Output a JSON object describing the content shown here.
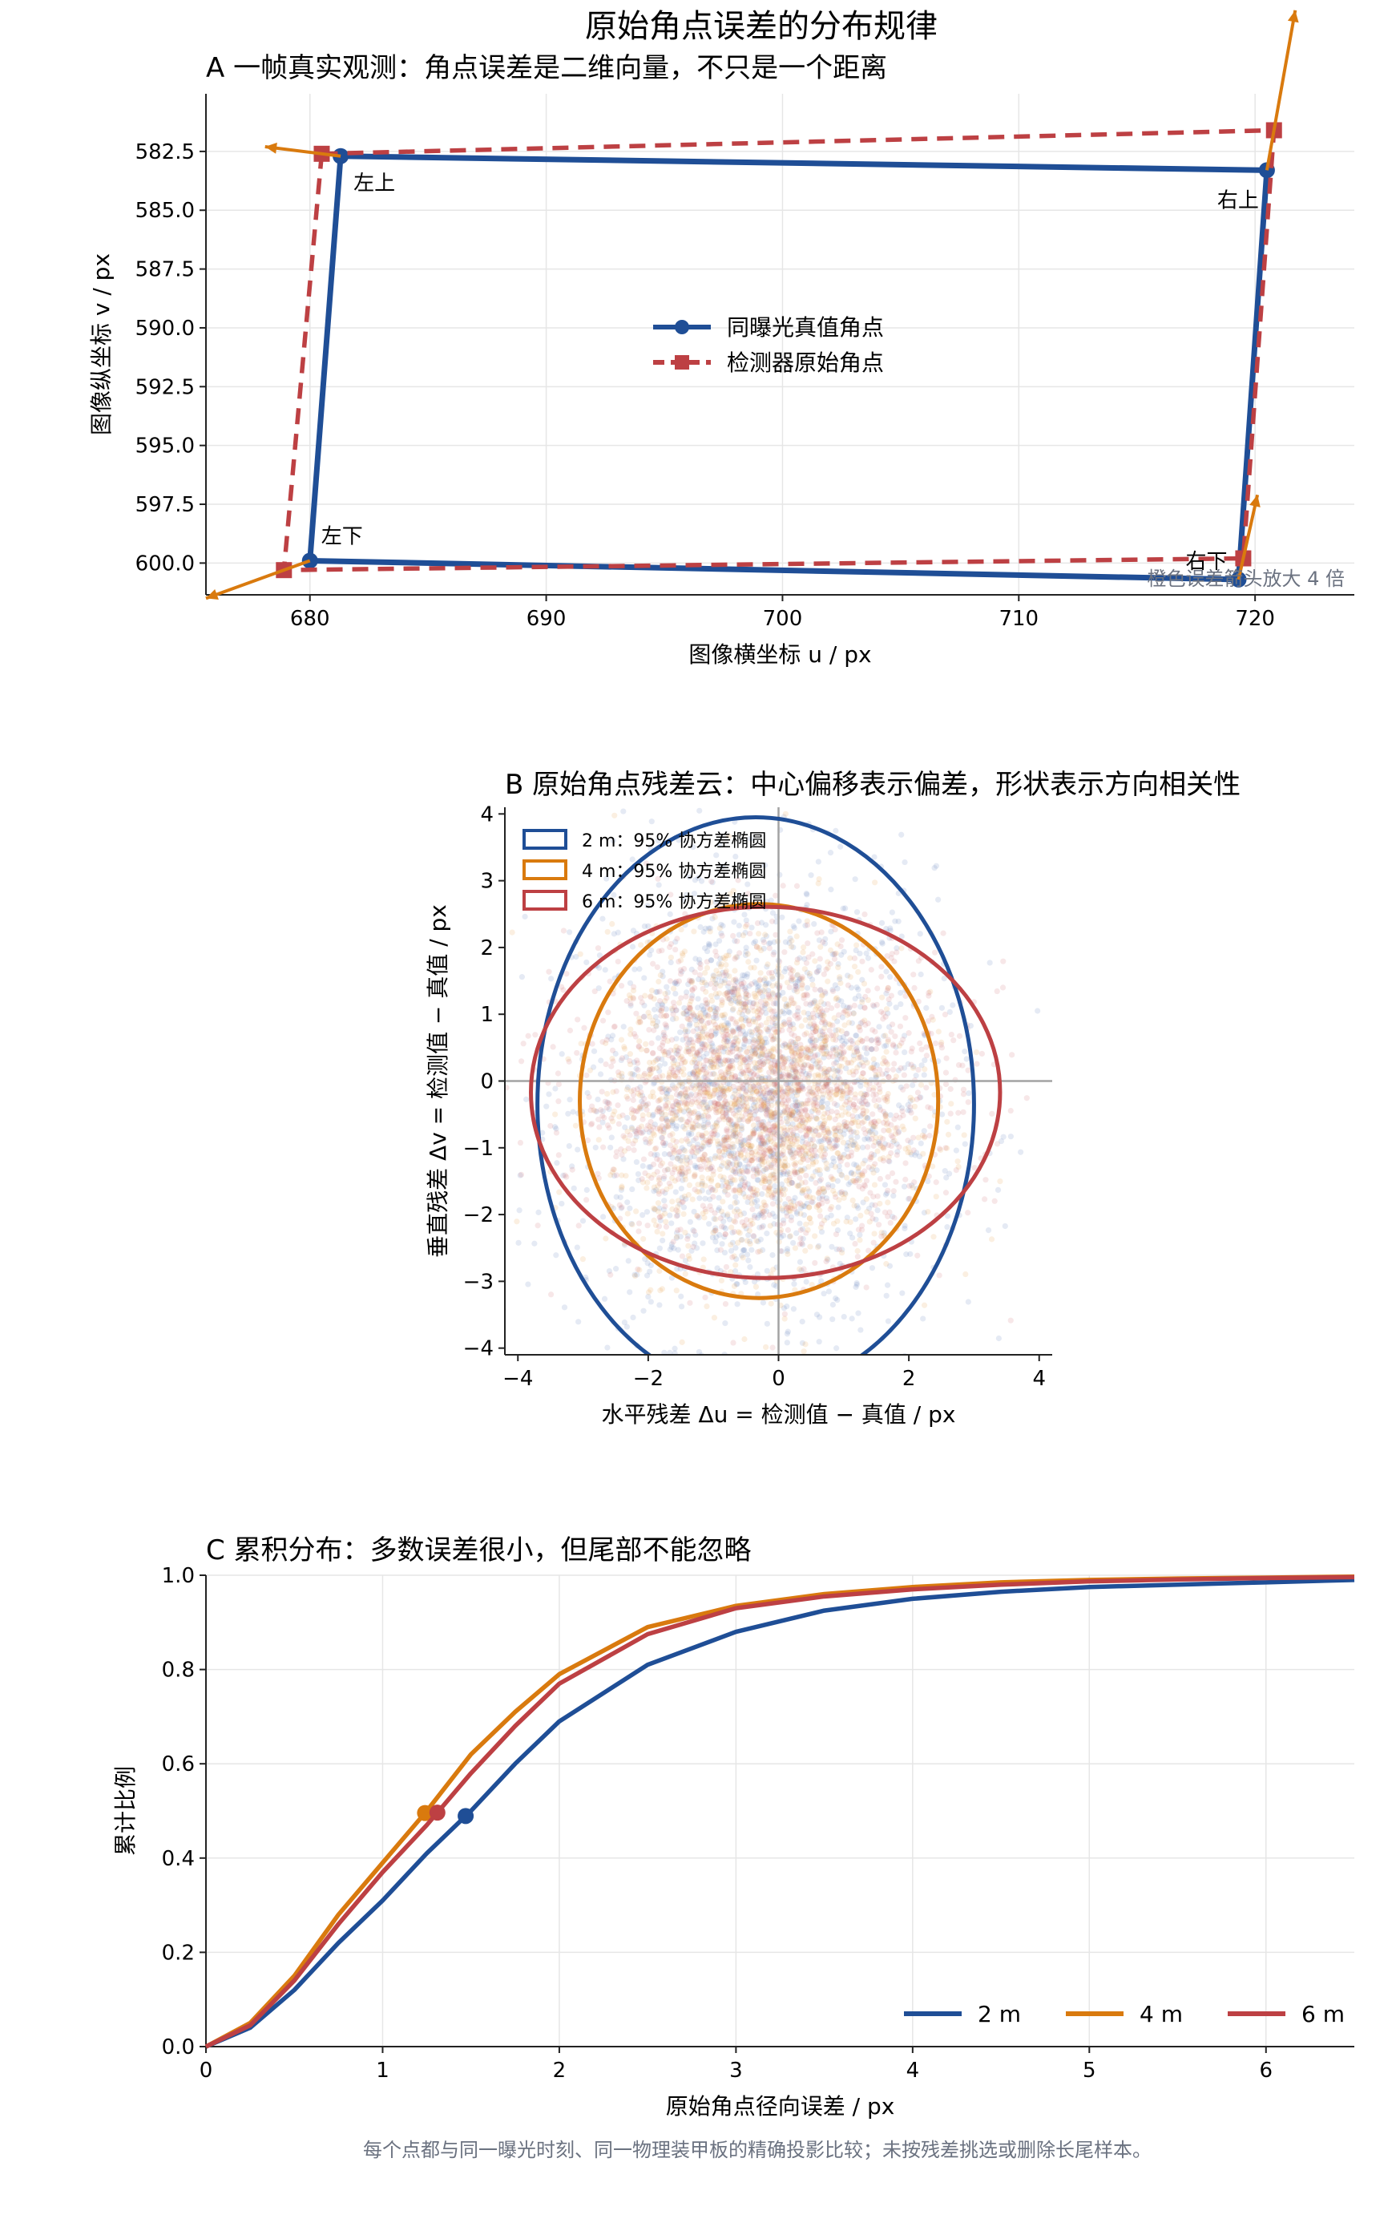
{
  "figure": {
    "title": "原始角点误差的分布规律",
    "footnote": "每个点都与同一曝光时刻、同一物理装甲板的精确投影比较；未按残差挑选或删除长尾样本。"
  },
  "chart_data": [
    {
      "panel": "A",
      "type": "line",
      "title": "A  一帧真实观测：角点误差是二维向量，不只是一个距离",
      "xlabel": "图像横坐标 u / px",
      "ylabel": "图像纵坐标 v / px",
      "xlim": [
        675.6,
        724.2
      ],
      "ylim": [
        601.35,
        580.05
      ],
      "y_inverted": true,
      "xticks": [
        680,
        690,
        700,
        710,
        720
      ],
      "yticks": [
        582.5,
        585.0,
        587.5,
        590.0,
        592.5,
        595.0,
        597.5,
        600.0
      ],
      "ytick_labels": [
        "582.5",
        "585.0",
        "587.5",
        "590.0",
        "592.5",
        "595.0",
        "597.5",
        "600.0"
      ],
      "grid": true,
      "legend": "center",
      "series": [
        {
          "name": "同曝光真值角点",
          "color": "#1f4e96",
          "style": "solid",
          "marker": "circle",
          "points": [
            [
              681.3,
              582.7
            ],
            [
              720.5,
              583.3
            ],
            [
              719.3,
              600.7
            ],
            [
              680.0,
              599.9
            ]
          ]
        },
        {
          "name": "检测器原始角点",
          "color": "#bd4043",
          "style": "dashed",
          "marker": "square",
          "points": [
            [
              680.5,
              582.6
            ],
            [
              720.8,
              581.6
            ],
            [
              719.5,
              599.8
            ],
            [
              678.9,
              600.3
            ]
          ]
        }
      ],
      "corner_labels": [
        "左上",
        "右上",
        "右下",
        "左下"
      ],
      "error_arrows": {
        "color": "#d97a0e",
        "scale": 4,
        "vectors": [
          [
            -0.8,
            -0.1
          ],
          [
            0.3,
            -1.7
          ],
          [
            0.2,
            -0.9
          ],
          [
            -1.1,
            0.4
          ]
        ]
      },
      "annotation": "橙色误差箭头放大 4 倍"
    },
    {
      "panel": "B",
      "type": "scatter",
      "title": "B  原始角点残差云：中心偏移表示偏差，形状表示方向相关性",
      "xlabel": "水平残差 Δu = 检测值 − 真值 / px",
      "ylabel": "垂直残差 Δv = 检测值 − 真值 / px",
      "xlim": [
        -4.2,
        4.2
      ],
      "ylim": [
        -4.1,
        4.1
      ],
      "xticks": [
        -4,
        -2,
        0,
        2,
        4
      ],
      "yticks": [
        -4,
        -3,
        -2,
        -1,
        0,
        1,
        2,
        3,
        4
      ],
      "legend": "top-left",
      "ellipses": [
        {
          "name": "2 m：95% 协方差椭圆",
          "color": "#1f4e96",
          "cx": -0.35,
          "cy": -0.35,
          "rx": 3.35,
          "ry": 4.3
        },
        {
          "name": "4 m：95% 协方差椭圆",
          "color": "#d97a0e",
          "cx": -0.3,
          "cy": -0.3,
          "rx": 2.75,
          "ry": 2.95
        },
        {
          "name": "6 m：95% 协方差椭圆",
          "color": "#bd4043",
          "cx": -0.2,
          "cy": -0.17,
          "rx": 3.6,
          "ry": 2.78
        }
      ],
      "clouds": [
        {
          "color": "#5b7fb8",
          "cx": -0.35,
          "cy": -0.35,
          "sx": 1.37,
          "sy": 1.76
        },
        {
          "color": "#e89a45",
          "cx": -0.3,
          "cy": -0.3,
          "sx": 1.12,
          "sy": 1.2
        },
        {
          "color": "#cf6a6d",
          "cx": -0.2,
          "cy": -0.17,
          "sx": 1.47,
          "sy": 1.13
        }
      ]
    },
    {
      "panel": "C",
      "type": "line",
      "title": "C  累积分布：多数误差很小，但尾部不能忽略",
      "xlabel": "原始角点径向误差 / px",
      "ylabel": "累计比例",
      "xlim": [
        0,
        6.5
      ],
      "ylim": [
        0,
        1.0
      ],
      "xticks": [
        0,
        1,
        2,
        3,
        4,
        5,
        6
      ],
      "yticks": [
        0.0,
        0.2,
        0.4,
        0.6,
        0.8,
        1.0
      ],
      "ytick_labels": [
        "0.0",
        "0.2",
        "0.4",
        "0.6",
        "0.8",
        "1.0"
      ],
      "grid": true,
      "legend": "bottom-right",
      "x": [
        0,
        0.25,
        0.5,
        0.75,
        1.0,
        1.25,
        1.5,
        1.75,
        2.0,
        2.5,
        3.0,
        3.5,
        4.0,
        4.5,
        5.0,
        5.5,
        6.0,
        6.5
      ],
      "series": [
        {
          "name": "2 m",
          "color": "#1f4e96",
          "median": 1.47,
          "values": [
            0,
            0.04,
            0.12,
            0.22,
            0.31,
            0.41,
            0.5,
            0.6,
            0.69,
            0.81,
            0.88,
            0.925,
            0.95,
            0.965,
            0.975,
            0.98,
            0.985,
            0.99
          ]
        },
        {
          "name": "4 m",
          "color": "#d97a0e",
          "median": 1.24,
          "values": [
            0,
            0.05,
            0.15,
            0.28,
            0.39,
            0.5,
            0.62,
            0.71,
            0.79,
            0.89,
            0.935,
            0.96,
            0.975,
            0.985,
            0.99,
            0.993,
            0.995,
            0.997
          ]
        },
        {
          "name": "6 m",
          "color": "#bd4043",
          "median": 1.31,
          "values": [
            0,
            0.045,
            0.14,
            0.26,
            0.37,
            0.47,
            0.58,
            0.68,
            0.77,
            0.875,
            0.93,
            0.955,
            0.97,
            0.98,
            0.987,
            0.991,
            0.994,
            0.996
          ]
        }
      ]
    }
  ]
}
